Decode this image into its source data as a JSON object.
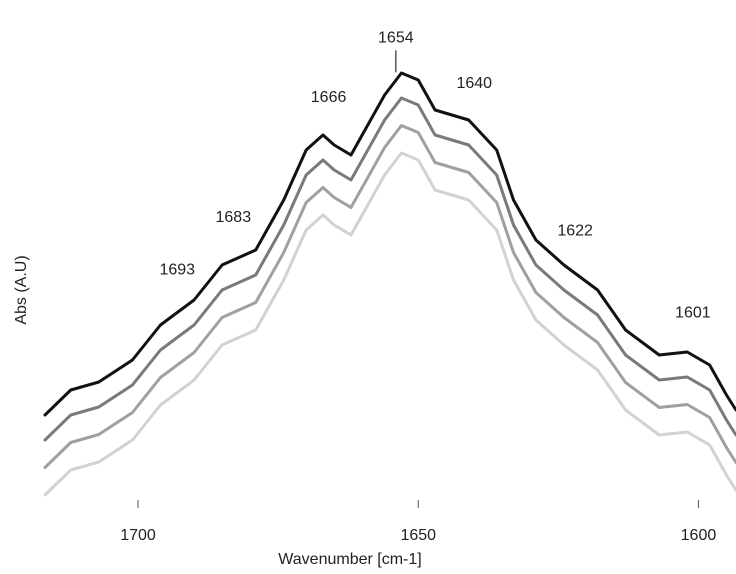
{
  "chart_data": {
    "type": "line",
    "x_label": "Wavenumber [cm-1]",
    "y_label": "Abs (A.U)",
    "x": [
      1716.6,
      1712,
      1707,
      1701,
      1696,
      1690,
      1685,
      1679,
      1674,
      1670,
      1667,
      1665,
      1662,
      1660,
      1656,
      1653,
      1650,
      1647,
      1644,
      1641,
      1636,
      1633,
      1629,
      1624,
      1618,
      1613,
      1607,
      1602,
      1598,
      1595,
      1593.3
    ],
    "series": [
      {
        "color": "#111111",
        "values": [
          21,
          26,
          27.6,
          32,
          39,
          44,
          51,
          54,
          64,
          74,
          77,
          75,
          73,
          77,
          85,
          89.4,
          88,
          82,
          81,
          80,
          74,
          64,
          56,
          51,
          46,
          38,
          33,
          33.6,
          31,
          25,
          22
        ]
      },
      {
        "color": "#7a7a7a",
        "values": [
          16,
          21,
          22.6,
          27,
          34,
          39,
          46,
          49,
          59,
          69,
          72,
          70,
          68,
          72,
          80,
          84.4,
          83,
          77,
          76,
          75,
          69,
          59,
          51,
          46,
          41,
          33,
          28,
          28.6,
          26,
          20,
          17
        ]
      },
      {
        "color": "#a0a0a0",
        "values": [
          10.5,
          15.5,
          17.1,
          21.5,
          28.5,
          33.5,
          40.5,
          43.5,
          53.5,
          63.5,
          66.5,
          64.5,
          62.5,
          66.5,
          74.5,
          78.9,
          77.5,
          71.5,
          70.5,
          69.5,
          63.5,
          53.5,
          45.5,
          40.5,
          35.5,
          27.5,
          22.5,
          23.1,
          20.5,
          14.5,
          11.5
        ]
      },
      {
        "color": "#d2d2d2",
        "values": [
          5,
          10,
          11.6,
          16,
          23,
          28,
          35,
          38,
          48,
          58,
          61,
          59,
          57,
          61,
          69,
          73.4,
          72,
          66,
          65,
          64,
          58,
          48,
          40,
          35,
          30,
          22,
          17,
          17.6,
          15,
          9,
          6
        ]
      }
    ],
    "annotations": [
      "1693",
      "1683",
      "1666",
      "1654",
      "1640",
      "1622",
      "1601"
    ],
    "xlim": [
      1716.6,
      1593.3
    ],
    "xticks": [
      1700,
      1650,
      1600
    ],
    "ylim": [
      0,
      100
    ]
  }
}
